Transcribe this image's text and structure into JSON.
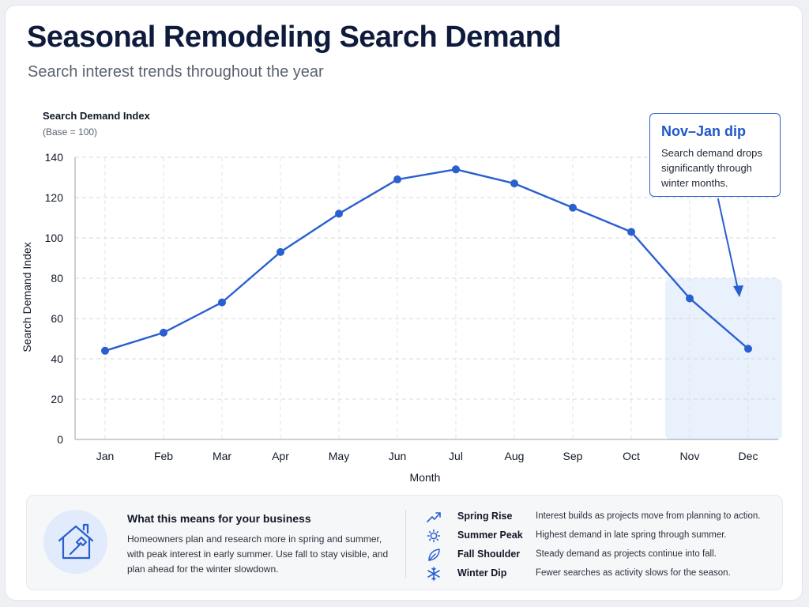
{
  "header": {
    "title": "Seasonal Remodeling Search Demand",
    "subtitle": "Search interest trends throughout the year"
  },
  "chart_data": {
    "type": "line",
    "y_title": "Search Demand Index",
    "y_base_note": "(Base = 100)",
    "ylabel": "Search Demand Index",
    "xlabel": "Month",
    "categories": [
      "Jan",
      "Feb",
      "Mar",
      "Apr",
      "May",
      "Jun",
      "Jul",
      "Aug",
      "Sep",
      "Oct",
      "Nov",
      "Dec"
    ],
    "series": [
      {
        "values": [
          44,
          53,
          68,
          93,
          112,
          129,
          134,
          127,
          115,
          103,
          70,
          45
        ]
      }
    ],
    "ylim": [
      0,
      140
    ],
    "yticks": [
      0,
      20,
      40,
      60,
      80,
      100,
      120,
      140
    ],
    "grid": true,
    "highlight_region": {
      "from": "Nov",
      "to": "Dec"
    },
    "line_color": "#2a5fcf",
    "highlight_color": "#e9f1fc"
  },
  "callout": {
    "title": "Nov–Jan dip",
    "text": "Search demand drops significantly through winter months."
  },
  "business": {
    "icon": "house-hammer-icon",
    "title": "What this means for your business",
    "text": "Homeowners plan and research more in spring and summer, with peak interest in early summer. Use fall to stay visible, and plan ahead for the winter slowdown."
  },
  "legend": [
    {
      "icon": "trending-up-icon",
      "name": "Spring Rise",
      "desc": "Interest builds as projects move from planning to action."
    },
    {
      "icon": "sun-icon",
      "name": "Summer Peak",
      "desc": "Highest demand in late spring through summer."
    },
    {
      "icon": "leaf-icon",
      "name": "Fall Shoulder",
      "desc": "Steady demand as projects continue into fall."
    },
    {
      "icon": "snowflake-icon",
      "name": "Winter Dip",
      "desc": "Fewer searches as activity slows for the season."
    }
  ],
  "colors": {
    "accent": "#2157c9",
    "title": "#0f1b3d"
  }
}
